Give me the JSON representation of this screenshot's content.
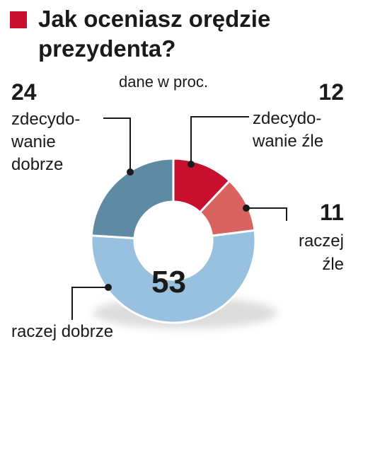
{
  "title": "Jak oceniasz orędzie prezydenta?",
  "subtitle": "dane w proc.",
  "colors": {
    "accent": "#c8102e",
    "zdecydowanie_zle": "#c8102e",
    "raczej_zle": "#d9635f",
    "raczej_dobrze": "#98c1df",
    "zdecydowanie_dobrze": "#5f8aa4"
  },
  "chart_data": {
    "type": "pie",
    "donut": true,
    "title": "Jak oceniasz orędzie prezydenta?",
    "subtitle": "dane w proc.",
    "slices": [
      {
        "label": "zdecydowanie źle",
        "value": 12,
        "color": "#c8102e"
      },
      {
        "label": "raczej źle",
        "value": 11,
        "color": "#d9635f"
      },
      {
        "label": "raczej dobrze",
        "value": 53,
        "color": "#98c1df"
      },
      {
        "label": "zdecydowanie dobrze",
        "value": 24,
        "color": "#5f8aa4"
      }
    ],
    "legend": "labels beside slices"
  },
  "labels": {
    "zdecydowanie_zle": {
      "value": "12",
      "line1": "zdecydo-",
      "line2": "wanie źle"
    },
    "raczej_zle": {
      "value": "11",
      "line1": "raczej",
      "line2": "źle"
    },
    "raczej_dobrze": {
      "value": "53",
      "line1": "raczej dobrze"
    },
    "zdecydowanie_dobrze": {
      "value": "24",
      "line1": "zdecydo-",
      "line2": "wanie",
      "line3": "dobrze"
    }
  }
}
